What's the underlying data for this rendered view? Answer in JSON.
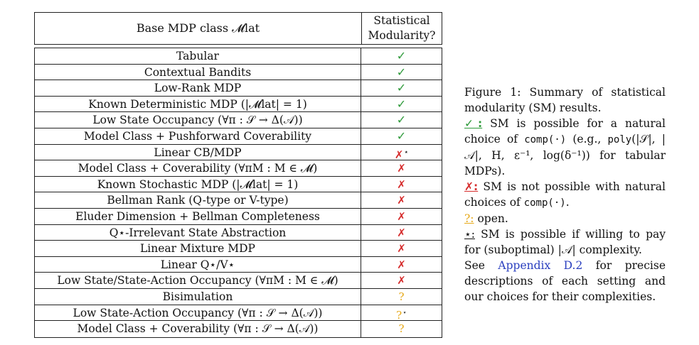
{
  "table": {
    "header_col1": "Base MDP class 𝓜lat",
    "header_col2_line1": "Statistical",
    "header_col2_line2": "Modularity?",
    "rows": [
      {
        "name": "Tabular",
        "mark": "✓",
        "kind": "yes",
        "sup": ""
      },
      {
        "name": "Contextual Bandits",
        "mark": "✓",
        "kind": "yes",
        "sup": ""
      },
      {
        "name": "Low-Rank MDP",
        "mark": "✓",
        "kind": "yes",
        "sup": ""
      },
      {
        "name": "Known Deterministic MDP (|𝓜lat| = 1)",
        "mark": "✓",
        "kind": "yes",
        "sup": ""
      },
      {
        "name": "Low State Occupancy (∀π : 𝒮 → Δ(𝒜))",
        "mark": "✓",
        "kind": "yes",
        "sup": ""
      },
      {
        "name": "Model Class + Pushforward Coverability",
        "mark": "✓",
        "kind": "yes",
        "sup": ""
      },
      {
        "name": "Linear CB/MDP",
        "mark": "✗",
        "kind": "no",
        "sup": "⋆"
      },
      {
        "name": "Model Class + Coverability (∀πM : M ∈ 𝓜)",
        "mark": "✗",
        "kind": "no",
        "sup": ""
      },
      {
        "name": "Known Stochastic MDP (|𝓜lat| = 1)",
        "mark": "✗",
        "kind": "no",
        "sup": ""
      },
      {
        "name": "Bellman Rank (Q-type or V-type)",
        "mark": "✗",
        "kind": "no",
        "sup": ""
      },
      {
        "name": "Eluder Dimension + Bellman Completeness",
        "mark": "✗",
        "kind": "no",
        "sup": ""
      },
      {
        "name": "Q⋆-Irrelevant State Abstraction",
        "mark": "✗",
        "kind": "no",
        "sup": ""
      },
      {
        "name": "Linear Mixture MDP",
        "mark": "✗",
        "kind": "no",
        "sup": ""
      },
      {
        "name": "Linear Q⋆/V⋆",
        "mark": "✗",
        "kind": "no",
        "sup": ""
      },
      {
        "name": "Low State/State-Action Occupancy (∀πM : M ∈ 𝓜)",
        "mark": "✗",
        "kind": "no",
        "sup": ""
      },
      {
        "name": "Bisimulation",
        "mark": "?",
        "kind": "open",
        "sup": ""
      },
      {
        "name": "Low State-Action Occupancy (∀π : 𝒮 → Δ(𝒜))",
        "mark": "?",
        "kind": "open",
        "sup": "⋆"
      },
      {
        "name": "Model Class + Coverability (∀π : 𝒮 → Δ(𝒜))",
        "mark": "?",
        "kind": "open",
        "sup": ""
      }
    ]
  },
  "caption": {
    "title": "Figure 1:  Summary of statistical modularity (SM) results.",
    "yes_label": "✓:",
    "yes_text_a": " SM is possible for a natural choice of ",
    "yes_comp": "comp(·)",
    "yes_text_b": " (e.g., ",
    "yes_poly": "poly",
    "yes_poly_args": "(|𝒮|, |𝒜|, H, ε⁻¹, log(δ⁻¹))",
    "yes_text_c": " for tabular MDPs).",
    "no_label": "✗:",
    "no_text_a": " SM is not possible with natural choices of ",
    "no_comp": "comp(·)",
    "no_text_b": ".",
    "open_label": "?:",
    "open_text": " open.",
    "star_label": "⋆:",
    "star_text": " SM is possible if willing to pay for (suboptimal) |𝒜| complexity.",
    "see_a": "See ",
    "see_link": "Appendix D.2",
    "see_b": " for precise descriptions of each setting and our choices for their complexities."
  }
}
